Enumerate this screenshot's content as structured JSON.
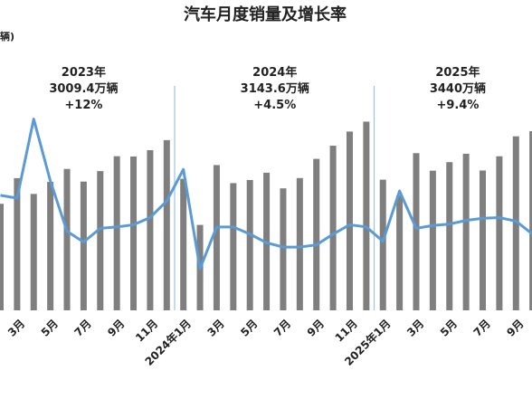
{
  "chart_data": {
    "type": "bar-line",
    "title": "汽车月度销量及增长率",
    "y_label": "辆)",
    "categories": [
      null,
      "3月",
      null,
      "5月",
      null,
      "7月",
      null,
      "9月",
      null,
      "11月",
      null,
      "2024年1月",
      null,
      "3月",
      null,
      "5月",
      null,
      "7月",
      null,
      "9月",
      null,
      "11月",
      null,
      "2025年1月",
      null,
      "3月",
      null,
      "5月",
      null,
      "7月",
      null,
      "9月",
      null
    ],
    "series": [
      {
        "color": "#7f7f7f",
        "values": [
          197.6,
          245.1,
          215.9,
          238.2,
          262.2,
          238.7,
          258.2,
          285.8,
          285.3,
          297,
          315.6,
          243.9,
          158.4,
          269.4,
          235.9,
          241.7,
          255.2,
          226.2,
          245.3,
          280.9,
          305.3,
          331.6,
          349.9,
          242.3,
          212.9,
          291.5,
          259,
          274.8,
          290.4,
          259.3,
          285.7,
          322.7,
          332.2
        ]
      },
      {
        "color": "#5b9bd5",
        "axis": "y2",
        "values": [
          30,
          28,
          83,
          40,
          5,
          -2.5,
          7,
          8,
          9.5,
          14.5,
          26,
          48,
          -21,
          8,
          8,
          3,
          -3,
          -6,
          -6,
          -4.5,
          3,
          9.5,
          8,
          -2,
          33,
          7,
          9,
          10,
          12.5,
          14,
          14.5,
          12,
          3
        ]
      }
    ],
    "ylim": [
      0,
      400
    ],
    "y2lim": [
      -50,
      100
    ],
    "annotations": [
      [
        "2023年",
        "3009.4万辆",
        "+12%"
      ],
      [
        "2024年",
        "3143.6万辆",
        "+4.5%"
      ],
      [
        "2025年",
        "3440万辆",
        "+9.4%"
      ]
    ]
  }
}
